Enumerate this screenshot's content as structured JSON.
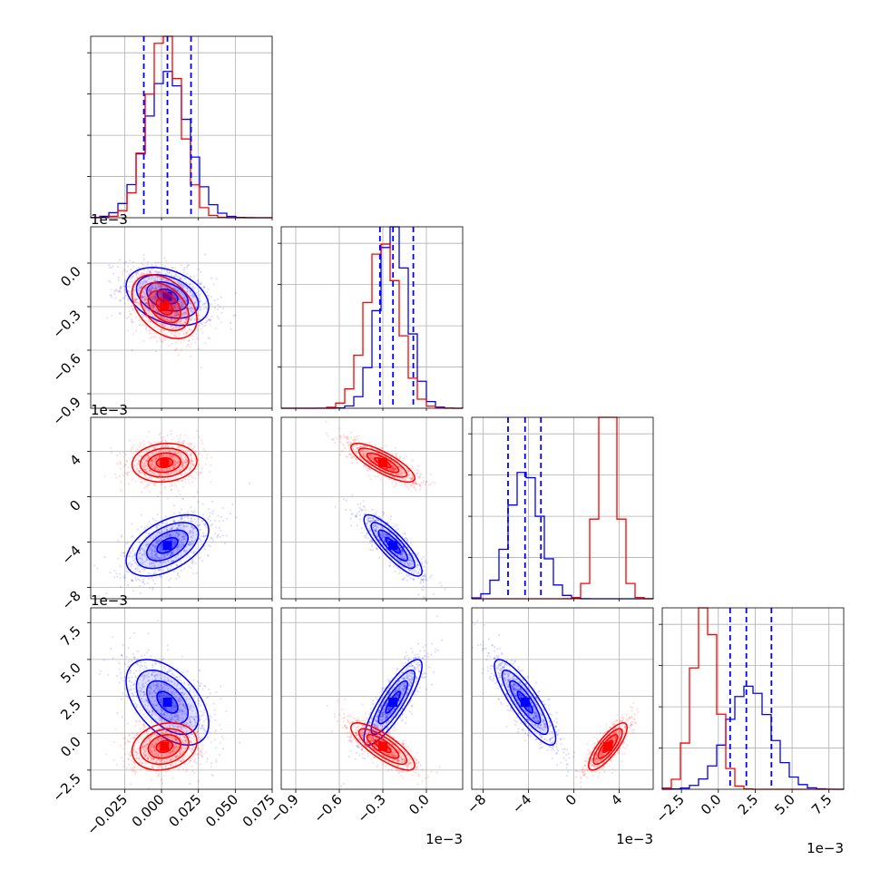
{
  "chart_data": {
    "type": "corner",
    "params": [
      {
        "range": [
          -0.048,
          0.075
        ],
        "ticks": [
          -0.025,
          0.0,
          0.025,
          0.05,
          0.075
        ],
        "tick_labels": [
          "−0.025",
          "0.000",
          "0.025",
          "0.050",
          "0.075"
        ],
        "exponent": ""
      },
      {
        "range": [
          -1.0,
          0.25
        ],
        "ticks": [
          -0.9,
          -0.6,
          -0.3,
          0.0
        ],
        "tick_labels": [
          "−0.9",
          "−0.6",
          "−0.3",
          "0.0"
        ],
        "exponent": "1e−3"
      },
      {
        "range": [
          -9.0,
          7.0
        ],
        "ticks": [
          -8,
          -4,
          0,
          4
        ],
        "tick_labels": [
          "−8",
          "−4",
          "0",
          "4"
        ],
        "exponent": "1e−3"
      },
      {
        "range": [
          -3.8,
          8.5
        ],
        "ticks": [
          -2.5,
          0.0,
          2.5,
          5.0,
          7.5
        ],
        "tick_labels": [
          "−2.5",
          "0.0",
          "2.5",
          "5.0",
          "7.5"
        ],
        "exponent": "1e−3"
      }
    ],
    "series": [
      {
        "color": "#0000ff",
        "mean": [
          0.004,
          -0.23,
          -4.3,
          2.1
        ],
        "std": [
          0.014,
          0.1,
          1.35,
          1.45
        ],
        "corr": [
          [
            1,
            -0.35,
            0.5,
            -0.5
          ],
          [
            -0.35,
            1,
            -0.85,
            0.85
          ],
          [
            0.5,
            -0.85,
            1,
            -0.85
          ],
          [
            -0.5,
            0.85,
            -0.85,
            1
          ]
        ],
        "quantiles": [
          [
            -0.012,
            0.004,
            0.02
          ],
          [
            -0.32,
            -0.23,
            -0.09
          ],
          [
            -5.8,
            -4.3,
            -2.9
          ],
          [
            0.8,
            1.9,
            3.6
          ]
        ]
      },
      {
        "color": "#ff0000",
        "mean": [
          0.002,
          -0.3,
          3.0,
          -0.9
        ],
        "std": [
          0.011,
          0.11,
          0.85,
          0.8
        ],
        "corr": [
          [
            1,
            -0.4,
            0.1,
            0.2
          ],
          [
            -0.4,
            1,
            -0.8,
            -0.8
          ],
          [
            0.1,
            -0.8,
            1,
            0.8
          ],
          [
            0.2,
            -0.8,
            0.8,
            1
          ]
        ]
      }
    ],
    "quantile_lines": {
      "series": "#0000ff",
      "style": "dashed"
    },
    "grid": true
  }
}
